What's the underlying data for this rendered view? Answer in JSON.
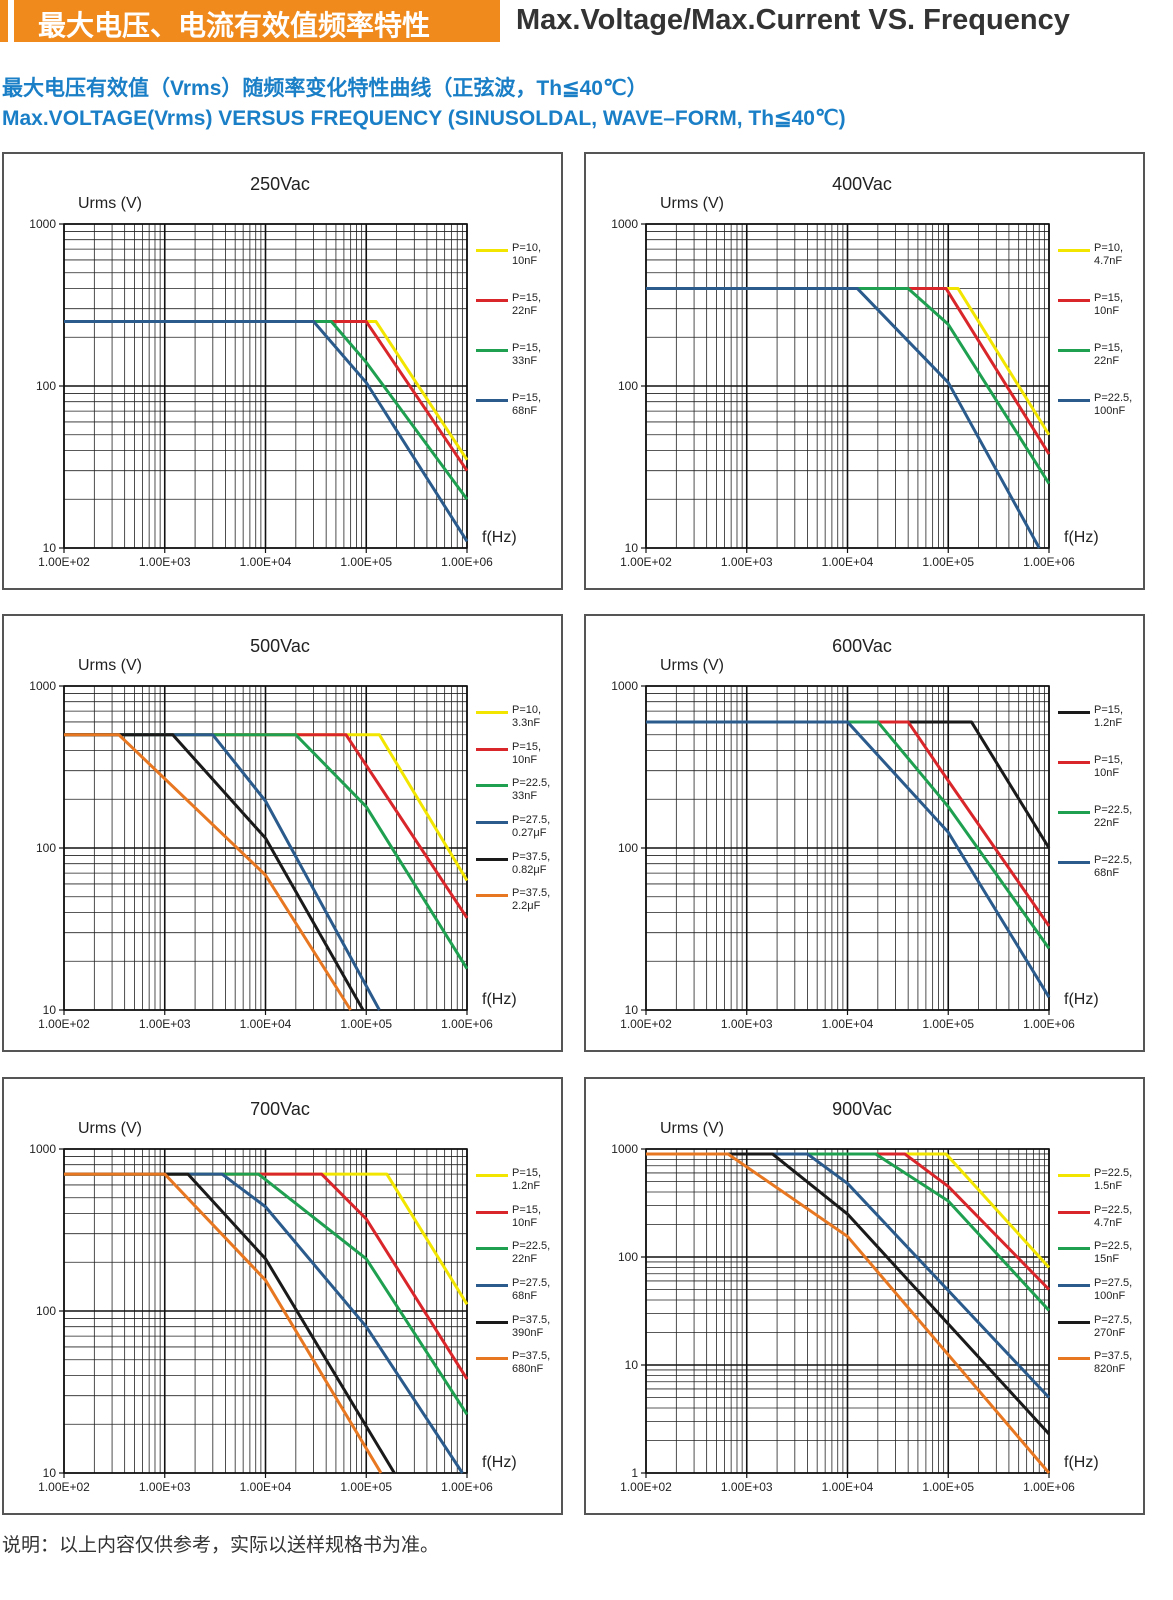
{
  "header": {
    "title_cn": "最大电压、电流有效值频率特性",
    "title_en": "Max.Voltage/Max.Current VS. Frequency",
    "subtitle_cn": "最大电压有效值（Vrms）随频率变化特性曲线（正弦波，Th≦40℃）",
    "subtitle_en": "Max.VOLTAGE(Vrms) VERSUS FREQUENCY (SINUSOLDAL, WAVE–FORM, Th≦40℃)"
  },
  "chart_data": [
    {
      "type": "line",
      "title": "250Vac",
      "y_label": "Urms (V)",
      "x_label": "f(Hz)",
      "x_scale": "log",
      "y_scale": "log",
      "grid": true,
      "xlim": [
        100,
        1000000
      ],
      "ylim": [
        10,
        1000
      ],
      "xticks": [
        {
          "value": 100,
          "label": "1.00E+02"
        },
        {
          "value": 1000,
          "label": "1.00E+03"
        },
        {
          "value": 10000,
          "label": "1.00E+04"
        },
        {
          "value": 100000,
          "label": "1.00E+05"
        },
        {
          "value": 1000000,
          "label": "1.00E+06"
        }
      ],
      "yticks": [
        10,
        100,
        1000
      ],
      "series": [
        {
          "name": "P=10, 10nF",
          "color": "#f2e600",
          "x": [
            100,
            125000,
            1000000
          ],
          "values": [
            250,
            250,
            35
          ]
        },
        {
          "name": "P=15, 22nF",
          "color": "#d9262b",
          "x": [
            100,
            100000,
            1000000
          ],
          "values": [
            250,
            250,
            30
          ]
        },
        {
          "name": "P=15, 33nF",
          "color": "#1fa050",
          "x": [
            100,
            45000,
            100000,
            1000000
          ],
          "values": [
            250,
            250,
            140,
            20
          ]
        },
        {
          "name": "P=15, 68nF",
          "color": "#2a5b8c",
          "x": [
            100,
            30000,
            100000,
            1000000
          ],
          "values": [
            250,
            250,
            105,
            11
          ]
        }
      ]
    },
    {
      "type": "line",
      "title": "400Vac",
      "y_label": "Urms (V)",
      "x_label": "f(Hz)",
      "x_scale": "log",
      "y_scale": "log",
      "grid": true,
      "xlim": [
        100,
        1000000
      ],
      "ylim": [
        10,
        1000
      ],
      "xticks": [
        {
          "value": 100,
          "label": "1.00E+02"
        },
        {
          "value": 1000,
          "label": "1.00E+03"
        },
        {
          "value": 10000,
          "label": "1.00E+04"
        },
        {
          "value": 100000,
          "label": "1.00E+05"
        },
        {
          "value": 1000000,
          "label": "1.00E+06"
        }
      ],
      "yticks": [
        10,
        100,
        1000
      ],
      "series": [
        {
          "name": "P=10, 4.7nF",
          "color": "#f2e600",
          "x": [
            100,
            125000,
            1000000
          ],
          "values": [
            400,
            400,
            50
          ]
        },
        {
          "name": "P=15, 10nF",
          "color": "#d9262b",
          "x": [
            100,
            95000,
            1000000
          ],
          "values": [
            400,
            400,
            38
          ]
        },
        {
          "name": "P=15, 22nF",
          "color": "#1fa050",
          "x": [
            100,
            40000,
            100000,
            1000000
          ],
          "values": [
            400,
            400,
            240,
            25
          ]
        },
        {
          "name": "P=22.5, 100nF",
          "color": "#2a5b8c",
          "x": [
            100,
            12500,
            100000,
            800000
          ],
          "values": [
            400,
            400,
            105,
            10
          ]
        }
      ]
    },
    {
      "type": "line",
      "title": "500Vac",
      "y_label": "Urms (V)",
      "x_label": "f(Hz)",
      "x_scale": "log",
      "y_scale": "log",
      "grid": true,
      "xlim": [
        100,
        1000000
      ],
      "ylim": [
        10,
        1000
      ],
      "xticks": [
        {
          "value": 100,
          "label": "1.00E+02"
        },
        {
          "value": 1000,
          "label": "1.00E+03"
        },
        {
          "value": 10000,
          "label": "1.00E+04"
        },
        {
          "value": 100000,
          "label": "1.00E+05"
        },
        {
          "value": 1000000,
          "label": "1.00E+06"
        }
      ],
      "yticks": [
        10,
        100,
        1000
      ],
      "series": [
        {
          "name": "P=10, 3.3nF",
          "color": "#f2e600",
          "x": [
            100,
            135000,
            1000000
          ],
          "values": [
            500,
            500,
            63
          ]
        },
        {
          "name": "P=15, 10nF",
          "color": "#d9262b",
          "x": [
            100,
            63000,
            1000000
          ],
          "values": [
            500,
            500,
            37
          ]
        },
        {
          "name": "P=22.5, 33nF",
          "color": "#1fa050",
          "x": [
            100,
            20000,
            100000,
            1000000
          ],
          "values": [
            500,
            500,
            180,
            18
          ]
        },
        {
          "name": "P=27.5, 0.27μF",
          "color": "#2a5b8c",
          "x": [
            100,
            3000,
            10000,
            135000
          ],
          "values": [
            500,
            500,
            195,
            10
          ]
        },
        {
          "name": "P=37.5, 0.82μF",
          "color": "#1a1a1a",
          "x": [
            100,
            1200,
            10000,
            93000
          ],
          "values": [
            500,
            500,
            115,
            10
          ]
        },
        {
          "name": "P=37.5, 2.2μF",
          "color": "#e87722",
          "x": [
            100,
            350,
            10000,
            70000
          ],
          "values": [
            500,
            500,
            68,
            10
          ]
        }
      ]
    },
    {
      "type": "line",
      "title": "600Vac",
      "y_label": "Urms (V)",
      "x_label": "f(Hz)",
      "x_scale": "log",
      "y_scale": "log",
      "grid": true,
      "xlim": [
        100,
        1000000
      ],
      "ylim": [
        10,
        1000
      ],
      "xticks": [
        {
          "value": 100,
          "label": "1.00E+02"
        },
        {
          "value": 1000,
          "label": "1.00E+03"
        },
        {
          "value": 10000,
          "label": "1.00E+04"
        },
        {
          "value": 100000,
          "label": "1.00E+05"
        },
        {
          "value": 1000000,
          "label": "1.00E+06"
        }
      ],
      "yticks": [
        10,
        100,
        1000
      ],
      "series": [
        {
          "name": "P=15, 1.2nF",
          "color": "#1a1a1a",
          "x": [
            100,
            170000,
            1000000
          ],
          "values": [
            600,
            600,
            100
          ]
        },
        {
          "name": "P=15, 10nF",
          "color": "#d9262b",
          "x": [
            100,
            40000,
            100000,
            1000000
          ],
          "values": [
            600,
            600,
            260,
            33
          ]
        },
        {
          "name": "P=22.5, 22nF",
          "color": "#1fa050",
          "x": [
            100,
            20000,
            100000,
            1000000
          ],
          "values": [
            600,
            600,
            180,
            24
          ]
        },
        {
          "name": "P=22.5, 68nF",
          "color": "#2a5b8c",
          "x": [
            100,
            10000,
            100000,
            1000000
          ],
          "values": [
            600,
            600,
            125,
            12
          ]
        }
      ]
    },
    {
      "type": "line",
      "title": "700Vac",
      "y_label": "Urms (V)",
      "x_label": "f(Hz)",
      "x_scale": "log",
      "y_scale": "log",
      "grid": true,
      "xlim": [
        100,
        1000000
      ],
      "ylim": [
        10,
        1000
      ],
      "xticks": [
        {
          "value": 100,
          "label": "1.00E+02"
        },
        {
          "value": 1000,
          "label": "1.00E+03"
        },
        {
          "value": 10000,
          "label": "1.00E+04"
        },
        {
          "value": 100000,
          "label": "1.00E+05"
        },
        {
          "value": 1000000,
          "label": "1.00E+06"
        }
      ],
      "yticks": [
        10,
        100,
        1000
      ],
      "series": [
        {
          "name": "P=15, 1.2nF",
          "color": "#f2e600",
          "x": [
            100,
            160000,
            1000000
          ],
          "values": [
            700,
            700,
            110
          ]
        },
        {
          "name": "P=15, 10nF",
          "color": "#d9262b",
          "x": [
            100,
            36000,
            100000,
            1000000
          ],
          "values": [
            700,
            700,
            370,
            38
          ]
        },
        {
          "name": "P=22.5, 22nF",
          "color": "#1fa050",
          "x": [
            100,
            8500,
            100000,
            1000000
          ],
          "values": [
            700,
            700,
            210,
            23
          ]
        },
        {
          "name": "P=27.5, 68nF",
          "color": "#2a5b8c",
          "x": [
            100,
            3700,
            10000,
            100000,
            900000
          ],
          "values": [
            700,
            700,
            440,
            80,
            10
          ]
        },
        {
          "name": "P=37.5, 390nF",
          "color": "#1a1a1a",
          "x": [
            100,
            1700,
            10000,
            190000
          ],
          "values": [
            700,
            700,
            210,
            10
          ]
        },
        {
          "name": "P=37.5, 680nF",
          "color": "#e87722",
          "x": [
            100,
            1000,
            10000,
            140000
          ],
          "values": [
            700,
            700,
            155,
            10
          ]
        }
      ]
    },
    {
      "type": "line",
      "title": "900Vac",
      "y_label": "Urms (V)",
      "x_label": "f(Hz)",
      "x_scale": "log",
      "y_scale": "log",
      "grid": true,
      "xlim": [
        100,
        1000000
      ],
      "ylim": [
        1,
        1000
      ],
      "xticks": [
        {
          "value": 100,
          "label": "1.00E+02"
        },
        {
          "value": 1000,
          "label": "1.00E+03"
        },
        {
          "value": 10000,
          "label": "1.00E+04"
        },
        {
          "value": 100000,
          "label": "1.00E+05"
        },
        {
          "value": 1000000,
          "label": "1.00E+06"
        }
      ],
      "yticks": [
        1,
        10,
        100,
        1000
      ],
      "series": [
        {
          "name": "P=22.5, 1.5nF",
          "color": "#f2e600",
          "x": [
            100,
            95000,
            1000000
          ],
          "values": [
            900,
            900,
            80
          ]
        },
        {
          "name": "P=22.5, 4.7nF",
          "color": "#d9262b",
          "x": [
            100,
            37000,
            100000,
            1000000
          ],
          "values": [
            900,
            900,
            450,
            50
          ]
        },
        {
          "name": "P=22.5, 15nF",
          "color": "#1fa050",
          "x": [
            100,
            19000,
            100000,
            1000000
          ],
          "values": [
            900,
            900,
            330,
            32
          ]
        },
        {
          "name": "P=27.5, 100nF",
          "color": "#2a5b8c",
          "x": [
            100,
            4000,
            10000,
            1000000
          ],
          "values": [
            900,
            900,
            480,
            5
          ]
        },
        {
          "name": "P=27.5, 270nF",
          "color": "#1a1a1a",
          "x": [
            100,
            1800,
            10000,
            1000000
          ],
          "values": [
            900,
            900,
            250,
            2.3
          ]
        },
        {
          "name": "P=37.5, 820nF",
          "color": "#e87722",
          "x": [
            100,
            650,
            10000,
            1000000
          ],
          "values": [
            900,
            900,
            155,
            1
          ]
        }
      ]
    }
  ],
  "footnote": "说明：以上内容仅供参考，实际以送样规格书为准。"
}
